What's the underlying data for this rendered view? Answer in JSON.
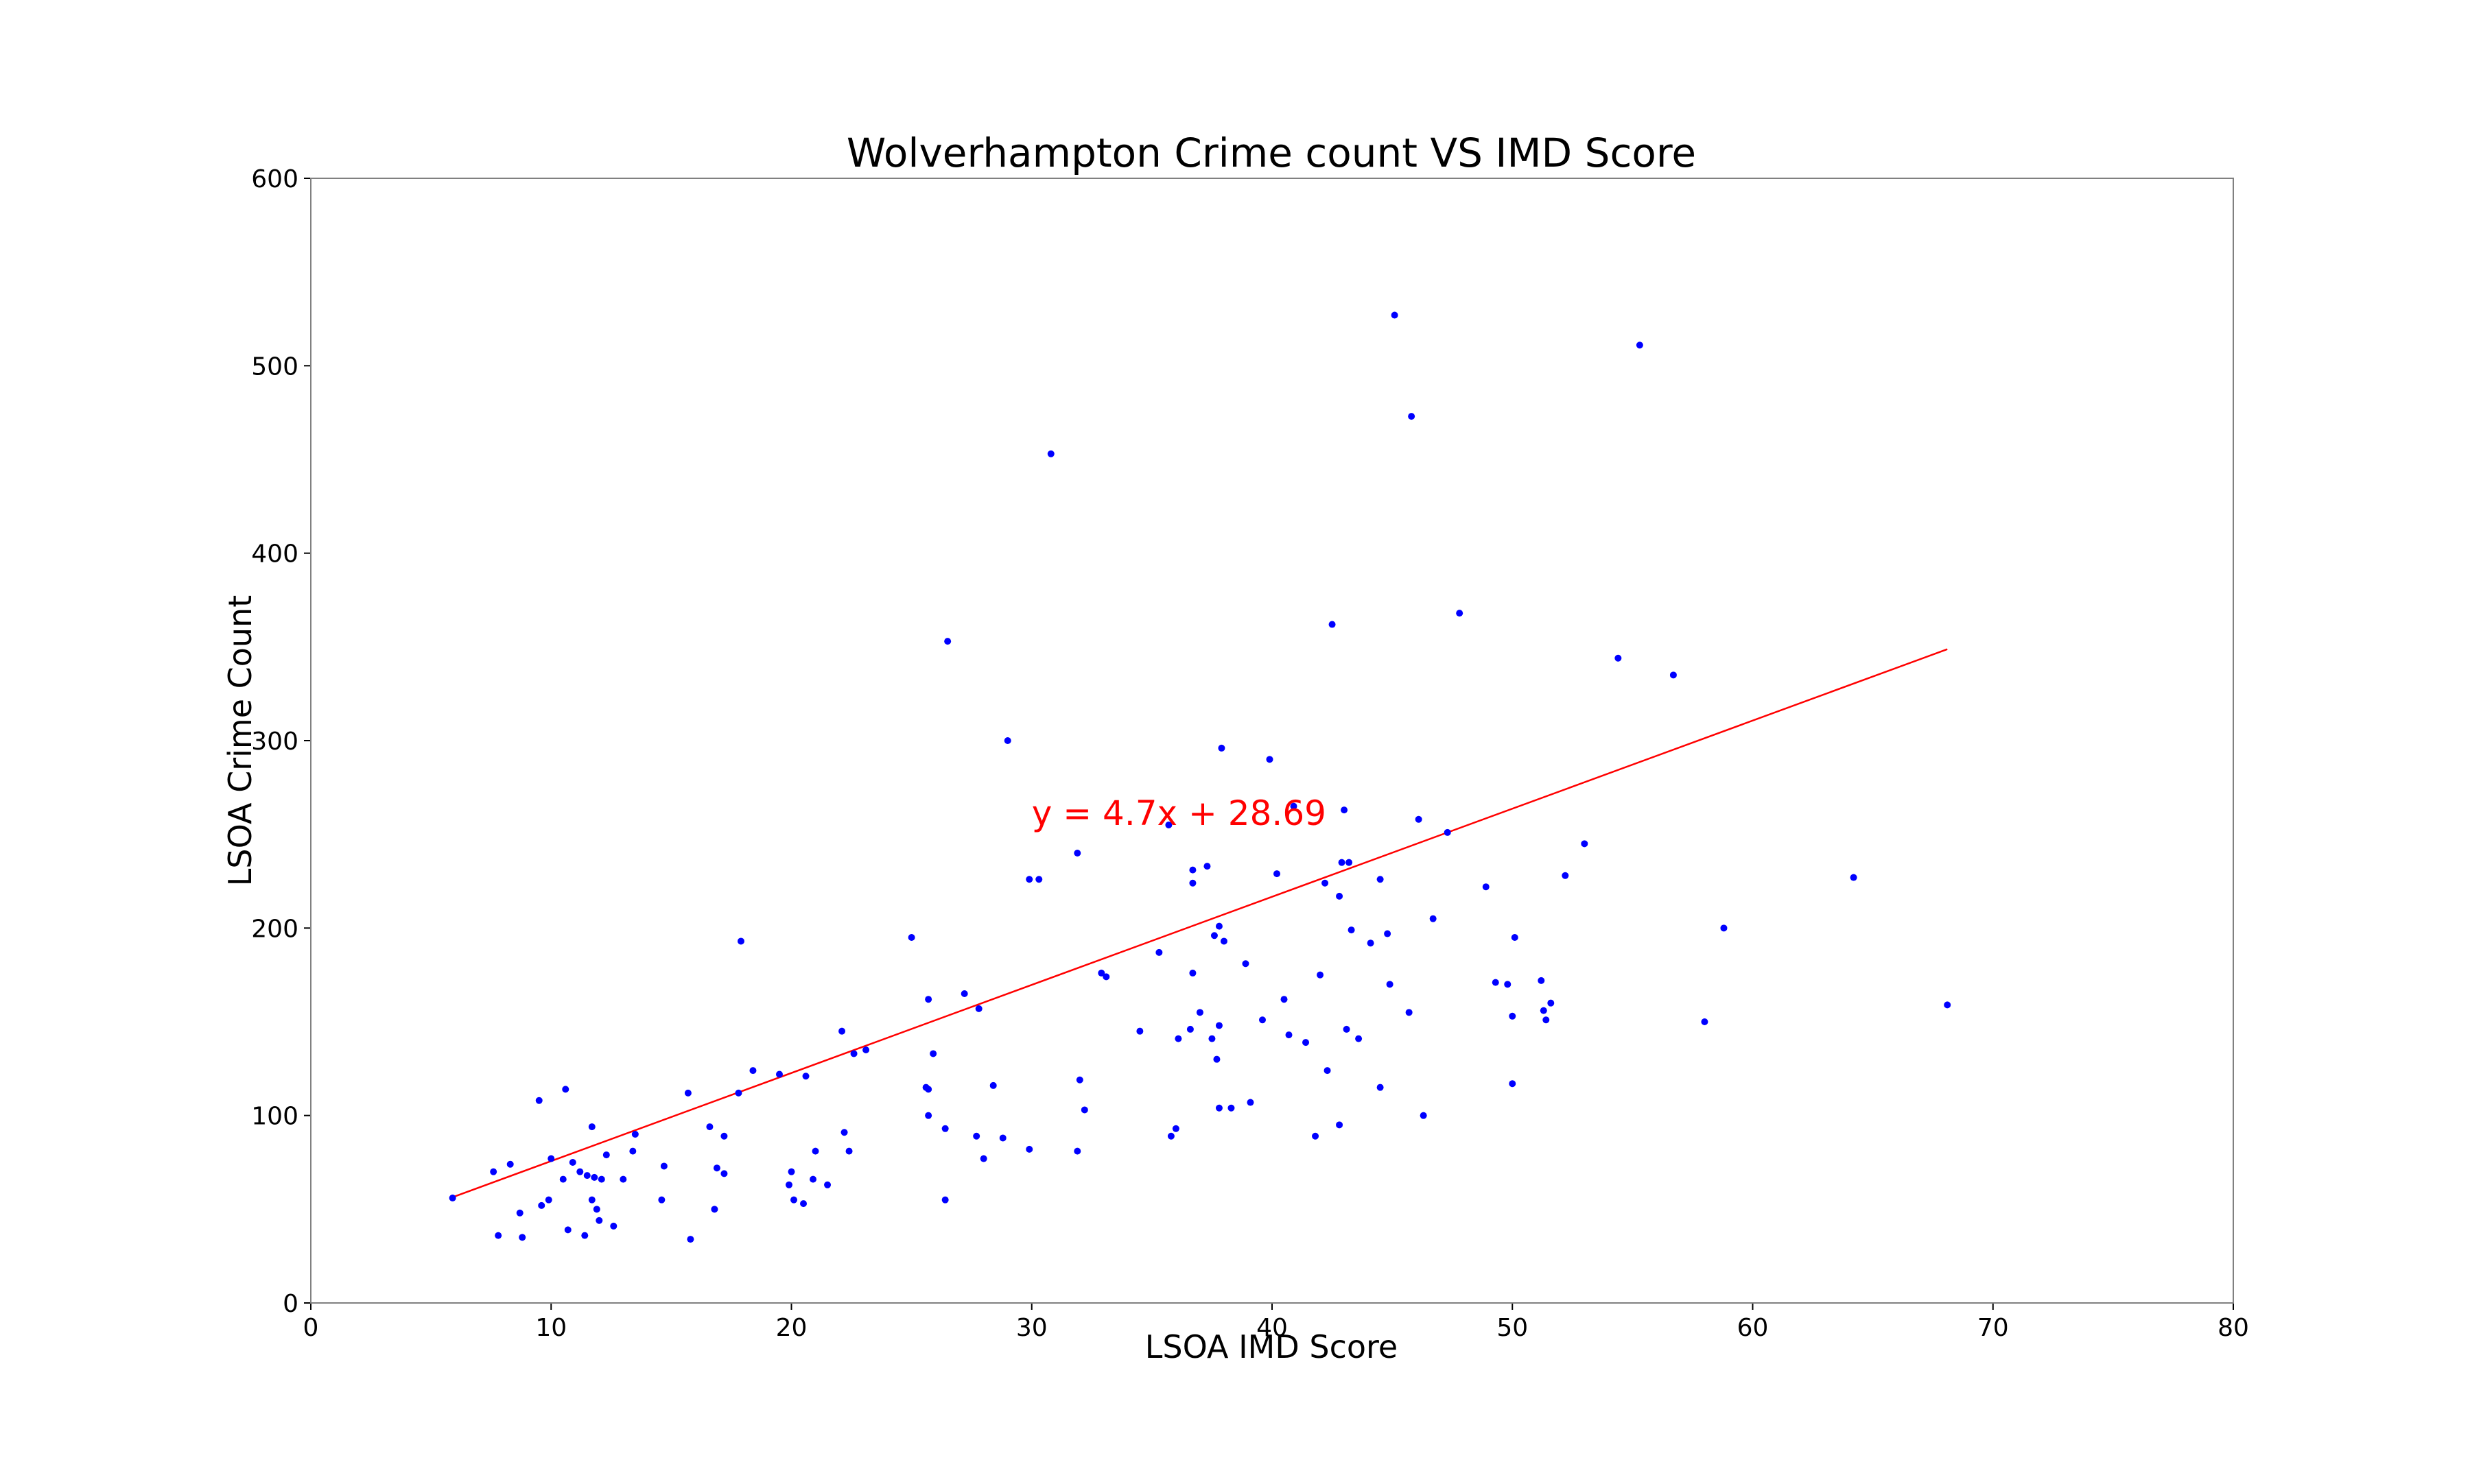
{
  "chart_data": {
    "type": "scatter",
    "title": "Wolverhampton Crime count VS IMD Score",
    "xlabel": "LSOA IMD Score",
    "ylabel": "LSOA Crime Count",
    "xlim": [
      0,
      80
    ],
    "ylim": [
      0,
      600
    ],
    "xticks": [
      "0",
      "10",
      "20",
      "30",
      "40",
      "50",
      "60",
      "70",
      "80"
    ],
    "yticks": [
      "0",
      "100",
      "200",
      "300",
      "400",
      "500",
      "600"
    ],
    "grid": false,
    "point_color": "#0000ff",
    "line_color": "#ff0000",
    "annotation": {
      "text": "y = 4.7x + 28.69",
      "x": 30,
      "y": 255,
      "color": "#ff0000"
    },
    "trendline": {
      "slope": 4.7,
      "intercept": 28.69,
      "x_start": 5.9,
      "x_end": 68.1
    },
    "points": [
      [
        5.9,
        56
      ],
      [
        7.6,
        70
      ],
      [
        7.8,
        36
      ],
      [
        8.3,
        74
      ],
      [
        8.7,
        48
      ],
      [
        8.8,
        35
      ],
      [
        9.5,
        108
      ],
      [
        9.6,
        52
      ],
      [
        9.9,
        55
      ],
      [
        10.0,
        77
      ],
      [
        10.5,
        66
      ],
      [
        10.6,
        114
      ],
      [
        10.7,
        39
      ],
      [
        10.9,
        75
      ],
      [
        11.2,
        70
      ],
      [
        11.4,
        36
      ],
      [
        11.5,
        68
      ],
      [
        11.7,
        94
      ],
      [
        11.7,
        55
      ],
      [
        11.8,
        67
      ],
      [
        11.9,
        50
      ],
      [
        12.0,
        44
      ],
      [
        12.1,
        66
      ],
      [
        12.3,
        79
      ],
      [
        12.6,
        41
      ],
      [
        13.0,
        66
      ],
      [
        13.4,
        81
      ],
      [
        13.5,
        90
      ],
      [
        14.6,
        55
      ],
      [
        14.7,
        73
      ],
      [
        15.7,
        112
      ],
      [
        15.8,
        34
      ],
      [
        16.6,
        94
      ],
      [
        16.8,
        50
      ],
      [
        16.9,
        72
      ],
      [
        17.2,
        89
      ],
      [
        17.2,
        69
      ],
      [
        17.8,
        112
      ],
      [
        17.9,
        193
      ],
      [
        18.4,
        124
      ],
      [
        19.5,
        122
      ],
      [
        19.9,
        63
      ],
      [
        20.0,
        70
      ],
      [
        20.1,
        55
      ],
      [
        20.5,
        53
      ],
      [
        20.6,
        121
      ],
      [
        20.9,
        66
      ],
      [
        21.0,
        81
      ],
      [
        21.5,
        63
      ],
      [
        22.1,
        145
      ],
      [
        22.2,
        91
      ],
      [
        22.4,
        81
      ],
      [
        22.6,
        133
      ],
      [
        23.1,
        135
      ],
      [
        25.0,
        195
      ],
      [
        25.7,
        162
      ],
      [
        25.6,
        115
      ],
      [
        25.7,
        114
      ],
      [
        25.7,
        100
      ],
      [
        25.9,
        133
      ],
      [
        26.4,
        55
      ],
      [
        26.4,
        93
      ],
      [
        26.5,
        353
      ],
      [
        27.2,
        165
      ],
      [
        27.7,
        89
      ],
      [
        27.8,
        157
      ],
      [
        28.0,
        77
      ],
      [
        28.4,
        116
      ],
      [
        28.8,
        88
      ],
      [
        29.0,
        300
      ],
      [
        29.9,
        82
      ],
      [
        29.9,
        226
      ],
      [
        30.3,
        226
      ],
      [
        30.8,
        453
      ],
      [
        31.9,
        240
      ],
      [
        31.9,
        81
      ],
      [
        32.0,
        119
      ],
      [
        32.2,
        103
      ],
      [
        32.9,
        176
      ],
      [
        33.1,
        174
      ],
      [
        34.5,
        145
      ],
      [
        35.3,
        187
      ],
      [
        35.7,
        255
      ],
      [
        35.8,
        89
      ],
      [
        36.0,
        93
      ],
      [
        36.1,
        141
      ],
      [
        36.6,
        146
      ],
      [
        36.7,
        231
      ],
      [
        36.7,
        224
      ],
      [
        36.7,
        176
      ],
      [
        37.0,
        155
      ],
      [
        37.3,
        233
      ],
      [
        37.5,
        141
      ],
      [
        37.6,
        196
      ],
      [
        37.7,
        130
      ],
      [
        37.8,
        104
      ],
      [
        37.8,
        148
      ],
      [
        37.9,
        296
      ],
      [
        37.8,
        201
      ],
      [
        38.0,
        193
      ],
      [
        38.3,
        104
      ],
      [
        38.9,
        181
      ],
      [
        39.1,
        107
      ],
      [
        39.6,
        151
      ],
      [
        39.9,
        290
      ],
      [
        40.2,
        229
      ],
      [
        40.5,
        162
      ],
      [
        40.7,
        143
      ],
      [
        40.9,
        265
      ],
      [
        41.4,
        139
      ],
      [
        41.8,
        89
      ],
      [
        42.0,
        175
      ],
      [
        42.2,
        224
      ],
      [
        42.3,
        124
      ],
      [
        42.5,
        362
      ],
      [
        42.8,
        95
      ],
      [
        42.8,
        217
      ],
      [
        42.9,
        235
      ],
      [
        43.0,
        263
      ],
      [
        43.1,
        146
      ],
      [
        43.2,
        235
      ],
      [
        43.3,
        199
      ],
      [
        43.6,
        141
      ],
      [
        44.1,
        192
      ],
      [
        44.5,
        226
      ],
      [
        44.5,
        115
      ],
      [
        44.8,
        197
      ],
      [
        44.9,
        170
      ],
      [
        45.1,
        527
      ],
      [
        45.7,
        155
      ],
      [
        45.8,
        473
      ],
      [
        46.1,
        258
      ],
      [
        46.3,
        100
      ],
      [
        46.7,
        205
      ],
      [
        47.3,
        251
      ],
      [
        47.8,
        368
      ],
      [
        48.9,
        222
      ],
      [
        49.3,
        171
      ],
      [
        49.8,
        170
      ],
      [
        50.0,
        117
      ],
      [
        50.0,
        153
      ],
      [
        50.1,
        195
      ],
      [
        51.2,
        172
      ],
      [
        51.3,
        156
      ],
      [
        51.4,
        151
      ],
      [
        51.6,
        160
      ],
      [
        52.2,
        228
      ],
      [
        53.0,
        245
      ],
      [
        54.4,
        344
      ],
      [
        55.3,
        511
      ],
      [
        56.7,
        335
      ],
      [
        58.0,
        150
      ],
      [
        58.8,
        200
      ],
      [
        64.2,
        227
      ],
      [
        68.1,
        159
      ]
    ]
  }
}
